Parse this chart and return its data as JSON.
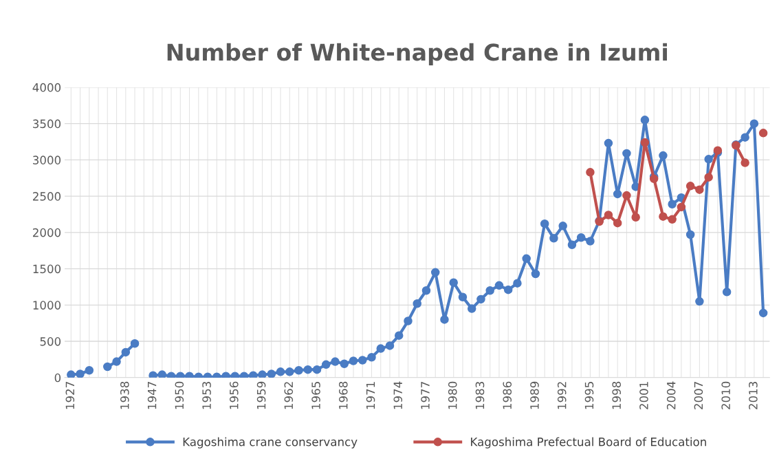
{
  "chart_data": {
    "type": "line",
    "title": "Number of White-naped Crane in Izumi",
    "categories": [
      "1927",
      null,
      null,
      null,
      null,
      null,
      "1938",
      null,
      null,
      "1947",
      null,
      null,
      "1950",
      null,
      null,
      "1953",
      null,
      null,
      "1956",
      null,
      null,
      "1959",
      null,
      null,
      "1962",
      null,
      null,
      "1965",
      null,
      null,
      "1968",
      null,
      null,
      "1971",
      null,
      null,
      "1974",
      null,
      null,
      "1977",
      null,
      null,
      "1980",
      null,
      null,
      "1983",
      null,
      null,
      "1986",
      null,
      null,
      "1989",
      null,
      null,
      "1992",
      null,
      null,
      "1995",
      null,
      null,
      "1998",
      null,
      null,
      "2001",
      null,
      null,
      "2004",
      null,
      null,
      "2007",
      null,
      null,
      "2010",
      null,
      null,
      "2013",
      null
    ],
    "series": [
      {
        "name": "Kagoshima crane conservancy",
        "color": "#4a7cc4",
        "values": [
          40,
          50,
          100,
          null,
          150,
          220,
          350,
          470,
          null,
          30,
          40,
          20,
          20,
          20,
          10,
          10,
          10,
          20,
          20,
          20,
          30,
          40,
          50,
          80,
          80,
          100,
          110,
          110,
          180,
          220,
          190,
          230,
          240,
          280,
          400,
          440,
          580,
          780,
          1020,
          1200,
          1450,
          800,
          1310,
          1110,
          950,
          1080,
          1200,
          1270,
          1210,
          1300,
          1640,
          1430,
          2120,
          1920,
          2090,
          1830,
          1930,
          1880,
          2160,
          3230,
          2530,
          3090,
          2630,
          3550,
          2770,
          3060,
          2390,
          2480,
          1970,
          1050,
          3010,
          3100,
          1180,
          3210,
          3310,
          3500,
          890
        ]
      },
      {
        "name": "Kagoshima Prefectual Board of Education",
        "color": "#c0504d",
        "values": [
          null,
          null,
          null,
          null,
          null,
          null,
          null,
          null,
          null,
          null,
          null,
          null,
          null,
          null,
          null,
          null,
          null,
          null,
          null,
          null,
          null,
          null,
          null,
          null,
          null,
          null,
          null,
          null,
          null,
          null,
          null,
          null,
          null,
          null,
          null,
          null,
          null,
          null,
          null,
          null,
          null,
          null,
          null,
          null,
          null,
          null,
          null,
          null,
          null,
          null,
          null,
          null,
          null,
          null,
          null,
          null,
          null,
          2830,
          2150,
          2240,
          2130,
          2510,
          2210,
          3240,
          2740,
          2220,
          2180,
          2350,
          2640,
          2590,
          2760,
          3130,
          null,
          3200,
          2960,
          null,
          3370
        ]
      }
    ],
    "ylim": [
      0,
      4000
    ],
    "yticks": [
      0,
      500,
      1000,
      1500,
      2000,
      2500,
      3000,
      3500,
      4000
    ],
    "grid": true,
    "legend": "bottom",
    "marker": "circle",
    "line_style": "solid"
  }
}
